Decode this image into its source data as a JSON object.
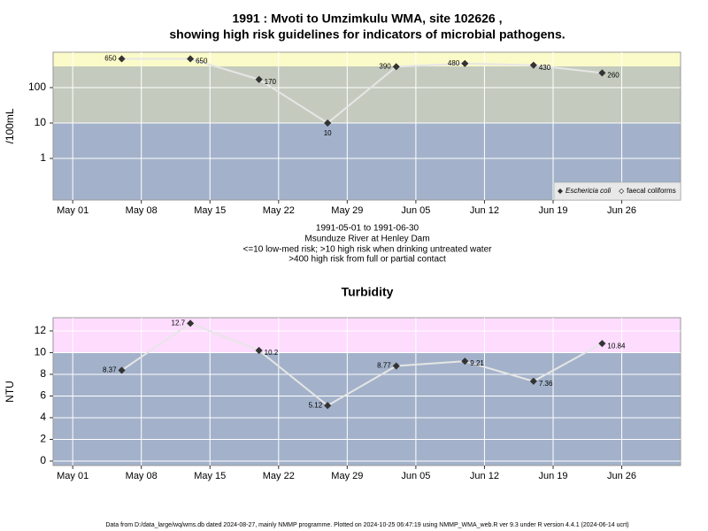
{
  "title": [
    "1991 : Mvoti to Umzimkulu WMA, site 102626 ,",
    "showing high risk guidelines for indicators of microbial pathogens."
  ],
  "caption": [
    "1991-05-01 to 1991-06-30",
    "Msunduze River at Henley Dam",
    "<=10 low-med risk; >10 high risk when drinking untreated water",
    ">400 high risk from full or partial contact"
  ],
  "footer": "Data from D:/data_large/wq/wms.db dated 2024-08-27, mainly NMMP programme. Plotted on 2024-10-25 06:47:19 using NMMP_WMA_web.R ver 9.3 under R version 4.4.1 (2024-06-14 ucrt)",
  "chart_data": [
    {
      "type": "line",
      "ylabel": "/100mL",
      "log": true,
      "grid": true,
      "legend": "bottom-right",
      "x": [
        "1991-05-06",
        "1991-05-13",
        "1991-05-20",
        "1991-05-27",
        "1991-06-03",
        "1991-06-10",
        "1991-06-17",
        "1991-06-24"
      ],
      "series": [
        {
          "name": "Eschericia coli",
          "color": "#333333",
          "line_color": "#e6e6e6",
          "values": [
            650,
            650,
            170,
            10,
            390,
            480,
            430,
            260
          ]
        },
        {
          "name": "faecal coliforms",
          "color": "#ffffff",
          "line_color": "#e6e6e6",
          "values": [
            null,
            null,
            null,
            null,
            null,
            null,
            null,
            null
          ]
        }
      ],
      "xlim": [
        "1991-04-29",
        "1991-07-02"
      ],
      "xticks": [
        {
          "value": "1991-05-01",
          "label": "May 01"
        },
        {
          "value": "1991-05-08",
          "label": "May 08"
        },
        {
          "value": "1991-05-15",
          "label": "May 15"
        },
        {
          "value": "1991-05-22",
          "label": "May 22"
        },
        {
          "value": "1991-05-29",
          "label": "May 29"
        },
        {
          "value": "1991-06-05",
          "label": "Jun 05"
        },
        {
          "value": "1991-06-12",
          "label": "Jun 12"
        },
        {
          "value": "1991-06-19",
          "label": "Jun 19"
        },
        {
          "value": "1991-06-26",
          "label": "Jun 26"
        }
      ],
      "ylim": [
        0.067,
        1000
      ],
      "yticks": [
        1,
        10,
        100
      ],
      "bands": [
        {
          "range": [
            0.067,
            10
          ],
          "color": "#a3b2ca"
        },
        {
          "range": [
            10,
            400
          ],
          "color": "#c4cbbe"
        },
        {
          "range": [
            400,
            1000
          ],
          "color": "#fbfbc9"
        }
      ]
    },
    {
      "type": "line",
      "title": "Turbidity",
      "ylabel": "NTU",
      "log": false,
      "grid": true,
      "x": [
        "1991-05-06",
        "1991-05-13",
        "1991-05-20",
        "1991-05-27",
        "1991-06-03",
        "1991-06-10",
        "1991-06-17",
        "1991-06-24"
      ],
      "series": [
        {
          "name": "Turbidity",
          "color": "#333333",
          "line_color": "#e6e6e6",
          "values": [
            8.37,
            12.7,
            10.2,
            5.12,
            8.77,
            9.21,
            7.36,
            10.84
          ]
        }
      ],
      "xlim": [
        "1991-04-29",
        "1991-07-02"
      ],
      "xticks": [
        {
          "value": "1991-05-01",
          "label": "May 01"
        },
        {
          "value": "1991-05-08",
          "label": "May 08"
        },
        {
          "value": "1991-05-15",
          "label": "May 15"
        },
        {
          "value": "1991-05-22",
          "label": "May 22"
        },
        {
          "value": "1991-05-29",
          "label": "May 29"
        },
        {
          "value": "1991-06-05",
          "label": "Jun 05"
        },
        {
          "value": "1991-06-12",
          "label": "Jun 12"
        },
        {
          "value": "1991-06-19",
          "label": "Jun 19"
        },
        {
          "value": "1991-06-26",
          "label": "Jun 26"
        }
      ],
      "ylim": [
        -0.41,
        13.22
      ],
      "yticks": [
        0,
        2,
        4,
        6,
        8,
        10,
        12
      ],
      "bands": [
        {
          "range": [
            -0.41,
            10
          ],
          "color": "#a3b2ca"
        },
        {
          "range": [
            10,
            13.22
          ],
          "color": "#fddcfd"
        }
      ]
    }
  ]
}
